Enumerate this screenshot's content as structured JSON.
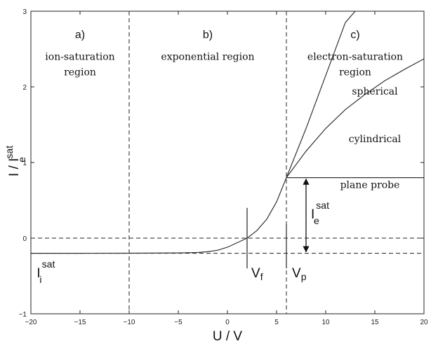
{
  "chart_data": {
    "type": "line",
    "xlabel": "U / V",
    "ylabel": {
      "main": "I / I",
      "sup": "sat",
      "sub": "e"
    },
    "xlim": [
      -20,
      20
    ],
    "ylim": [
      -1,
      3
    ],
    "xticks": [
      -20,
      -15,
      -10,
      -5,
      0,
      5,
      10,
      15,
      20
    ],
    "yticks": [
      -1,
      0,
      1,
      2,
      3
    ],
    "xtick_labels": [
      "−20",
      "−15",
      "−10",
      "−5",
      "0",
      "5",
      "10",
      "15",
      "20"
    ],
    "ytick_labels": [
      "−1",
      "0",
      "1",
      "2",
      "3"
    ],
    "grid": false,
    "vertical_dashed_lines": [
      -10,
      6
    ],
    "horizontal_dashed_lines": [
      0,
      -0.2
    ],
    "regions": [
      {
        "letter": "a)",
        "name": [
          "ion-saturation",
          "region"
        ],
        "x": -15
      },
      {
        "letter": "b)",
        "name": [
          "exponential region"
        ],
        "x": -2
      },
      {
        "letter": "c)",
        "name": [
          "electron-saturation",
          "region"
        ],
        "x": 13
      }
    ],
    "series": [
      {
        "name": "",
        "x": [
          -20,
          -15,
          -10,
          -5,
          -3,
          -2,
          -1,
          0,
          1,
          2,
          3,
          4,
          5,
          6
        ],
        "y": [
          -0.2,
          -0.2,
          -0.199,
          -0.195,
          -0.19,
          -0.18,
          -0.16,
          -0.12,
          -0.06,
          0.0,
          0.1,
          0.25,
          0.48,
          0.8
        ]
      },
      {
        "name": "spherical",
        "x": [
          6,
          8,
          10,
          12,
          13
        ],
        "y": [
          0.8,
          1.45,
          2.15,
          2.85,
          3.0
        ]
      },
      {
        "name": "cylindrical",
        "x": [
          6,
          8,
          10,
          12,
          14,
          16,
          18,
          20
        ],
        "y": [
          0.8,
          1.15,
          1.45,
          1.7,
          1.9,
          2.08,
          2.23,
          2.37
        ]
      },
      {
        "name": "plane probe",
        "x": [
          6,
          20
        ],
        "y": [
          0.8,
          0.8
        ]
      }
    ],
    "markers": [
      {
        "main": "V",
        "sub": "f",
        "x": 2,
        "y_range": [
          -0.4,
          0.4
        ]
      },
      {
        "main": "V",
        "sub": "p",
        "x": 6,
        "y_range": [
          -0.4,
          0.18
        ]
      }
    ],
    "annotations": {
      "ion_current": {
        "main": "I",
        "sup": "sat",
        "sub": "i"
      },
      "electron_current": {
        "main": "I",
        "sup": "sat",
        "sub": "e",
        "x": 8,
        "y_from": 0.8,
        "y_to": -0.2
      }
    }
  }
}
